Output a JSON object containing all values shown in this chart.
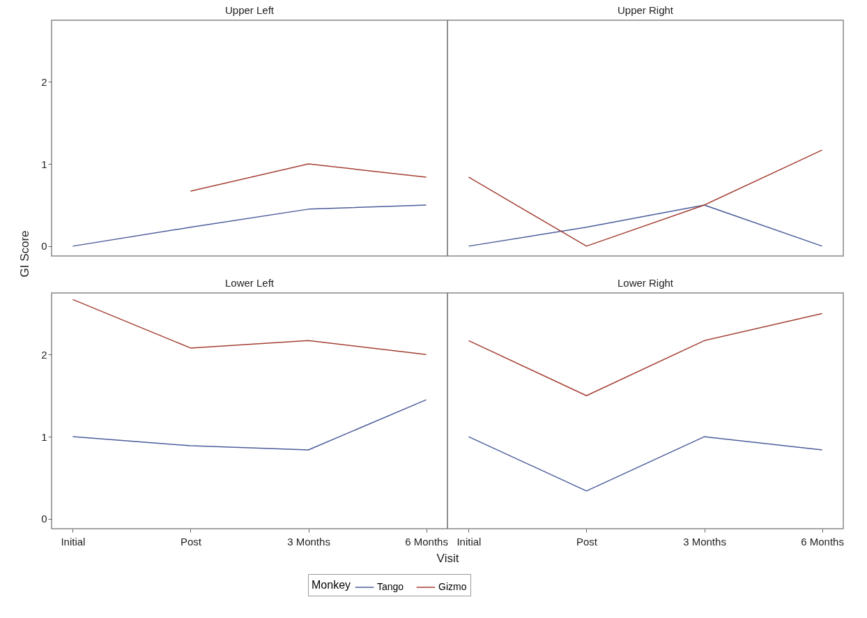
{
  "chart_data": [
    {
      "type": "line",
      "title": "Upper Left",
      "ylabel": "GI Score",
      "legend_title": "Monkey",
      "legend": "bottom",
      "categories": [
        "Initial",
        "Post",
        "3 Months",
        "6 Months"
      ],
      "ylim": [
        -0.12,
        2.75
      ],
      "yticks": [
        0,
        1,
        2
      ],
      "tick_labels": "y",
      "series": [
        {
          "name": "Tango",
          "color": "#4b5c9a",
          "values": [
            0,
            0.23,
            0.45,
            0.5
          ]
        },
        {
          "name": "Gizmo",
          "color": "#a33f33",
          "values": [
            null,
            0.67,
            1.0,
            0.84
          ]
        }
      ]
    },
    {
      "type": "line",
      "title": "Upper Right",
      "categories": [
        "Initial",
        "Post",
        "3 Months",
        "6 Months"
      ],
      "ylim": [
        -0.12,
        2.75
      ],
      "yticks": [
        0,
        1,
        2
      ],
      "tick_labels": false,
      "series": [
        {
          "name": "Tango",
          "color": "#4b5c9a",
          "values": [
            0,
            0.23,
            0.5,
            0
          ]
        },
        {
          "name": "Gizmo",
          "color": "#a33f33",
          "values": [
            0.84,
            0,
            0.5,
            1.17
          ]
        }
      ]
    },
    {
      "type": "line",
      "title": "Lower Left",
      "xlabel": "Visit",
      "categories": [
        "Initial",
        "Post",
        "3 Months",
        "6 Months"
      ],
      "ylim": [
        -0.12,
        2.75
      ],
      "yticks": [
        0,
        1,
        2
      ],
      "series": [
        {
          "name": "Tango",
          "color": "#4b5c9a",
          "values": [
            1.0,
            0.89,
            0.84,
            1.45
          ]
        },
        {
          "name": "Gizmo",
          "color": "#a33f33",
          "values": [
            2.67,
            2.08,
            2.17,
            2.0
          ]
        }
      ]
    },
    {
      "type": "line",
      "title": "Lower Right",
      "categories": [
        "Initial",
        "Post",
        "3 Months",
        "6 Months"
      ],
      "ylim": [
        -0.12,
        2.75
      ],
      "yticks": [
        0,
        1,
        2
      ],
      "tick_labels": "x",
      "series": [
        {
          "name": "Tango",
          "color": "#4b5c9a",
          "values": [
            1.0,
            0.34,
            1.0,
            0.84
          ]
        },
        {
          "name": "Gizmo",
          "color": "#a33f33",
          "values": [
            2.17,
            1.5,
            2.17,
            2.5
          ]
        }
      ]
    }
  ]
}
